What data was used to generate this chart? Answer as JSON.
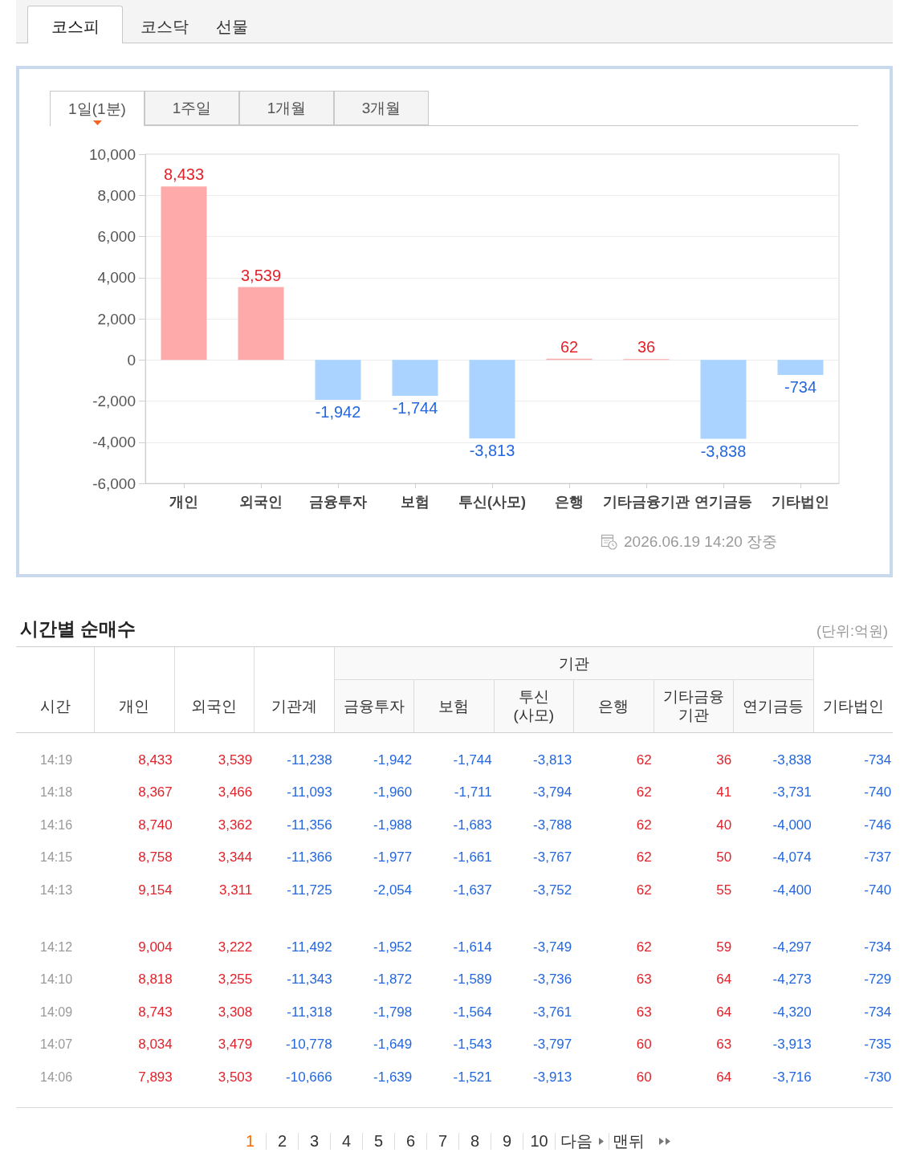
{
  "chart_data": [
    {
      "type": "bar",
      "categories": [
        "개인",
        "외국인",
        "금융투자",
        "보험",
        "투신(사모)",
        "은행",
        "기타금융기관",
        "연기금등",
        "기타법인"
      ],
      "values": [
        8433,
        3539,
        -1942,
        -1744,
        -3813,
        62,
        36,
        -3838,
        -734
      ],
      "value_labels": [
        "8,433",
        "3,539",
        "-1,942",
        "-1,744",
        "-3,813",
        "62",
        "36",
        "-3,838",
        "-734"
      ],
      "colors": [
        "#ffaaaa",
        "#ffaaaa",
        "#aad4ff",
        "#aad4ff",
        "#aad4ff",
        "#ffaaaa",
        "#ffaaaa",
        "#aad4ff",
        "#aad4ff"
      ],
      "ylim": [
        -6000,
        10000
      ],
      "yticks": [
        {
          "value": -6000,
          "label": "-6,000"
        },
        {
          "value": -4000,
          "label": "-4,000"
        },
        {
          "value": -2000,
          "label": "-2,000"
        },
        0,
        {
          "value": 2000,
          "label": "2,000"
        },
        {
          "value": 4000,
          "label": "4,000"
        },
        {
          "value": 6000,
          "label": "6,000"
        },
        {
          "value": 8000,
          "label": "8,000"
        },
        {
          "value": 10000,
          "label": "10,000"
        }
      ],
      "grid": "y",
      "annotations": [
        "코스피",
        "코스닥",
        "선물",
        "1일(1분)",
        "1주일",
        "1개월",
        "3개월",
        "2026.06.19 14:20 장중"
      ]
    },
    {
      "type": "heatmap",
      "title": "시간별 순매수",
      "ylabel": "시간",
      "categories": [
        "개인",
        "외국인",
        "기관계",
        "금융투자",
        "보험",
        "투신(사모)",
        "은행",
        "기타금융기관",
        "연기금등",
        "기타법인"
      ],
      "y_categories": [
        "14:19",
        "14:18",
        "14:16",
        "14:15",
        "14:13",
        "14:12",
        "14:10",
        "14:09",
        "14:07",
        "14:06"
      ],
      "cells": [
        [
          8433,
          3539,
          -11238,
          -1942,
          -1744,
          -3813,
          62,
          36,
          -3838,
          -734
        ],
        [
          8367,
          3466,
          -11093,
          -1960,
          -1711,
          -3794,
          62,
          41,
          -3731,
          -740
        ],
        [
          8740,
          3362,
          -11356,
          -1988,
          -1683,
          -3788,
          62,
          40,
          -4000,
          -746
        ],
        [
          8758,
          3344,
          -11366,
          -1977,
          -1661,
          -3767,
          62,
          50,
          -4074,
          -737
        ],
        [
          9154,
          3311,
          -11725,
          -2054,
          -1637,
          -3752,
          62,
          55,
          -4400,
          -740
        ],
        [
          9004,
          3222,
          -11492,
          -1952,
          -1614,
          -3749,
          62,
          59,
          -4297,
          -734
        ],
        [
          8818,
          3255,
          -11343,
          -1872,
          -1589,
          -3736,
          63,
          64,
          -4273,
          -729
        ],
        [
          8743,
          3308,
          -11318,
          -1798,
          -1564,
          -3761,
          63,
          64,
          -4320,
          -734
        ],
        [
          8034,
          3479,
          -10778,
          -1649,
          -1543,
          -3797,
          60,
          63,
          -3913,
          -735
        ],
        [
          7893,
          3503,
          -10666,
          -1639,
          -1521,
          -3913,
          60,
          64,
          -3716,
          -730
        ]
      ],
      "cell_labels": [
        [
          "8,433",
          "3,539",
          "-11,238",
          "-1,942",
          "-1,744",
          "-3,813",
          "62",
          "36",
          "-3,838",
          "-734"
        ],
        [
          "8,367",
          "3,466",
          "-11,093",
          "-1,960",
          "-1,711",
          "-3,794",
          "62",
          "41",
          "-3,731",
          "-740"
        ],
        [
          "8,740",
          "3,362",
          "-11,356",
          "-1,988",
          "-1,683",
          "-3,788",
          "62",
          "40",
          "-4,000",
          "-746"
        ],
        [
          "8,758",
          "3,344",
          "-11,366",
          "-1,977",
          "-1,661",
          "-3,767",
          "62",
          "50",
          "-4,074",
          "-737"
        ],
        [
          "9,154",
          "3,311",
          "-11,725",
          "-2,054",
          "-1,637",
          "-3,752",
          "62",
          "55",
          "-4,400",
          "-740"
        ],
        [
          "9,004",
          "3,222",
          "-11,492",
          "-1,952",
          "-1,614",
          "-3,749",
          "62",
          "59",
          "-4,297",
          "-734"
        ],
        [
          "8,818",
          "3,255",
          "-11,343",
          "-1,872",
          "-1,589",
          "-3,736",
          "63",
          "64",
          "-4,273",
          "-729"
        ],
        [
          "8,743",
          "3,308",
          "-11,318",
          "-1,798",
          "-1,564",
          "-3,761",
          "63",
          "64",
          "-4,320",
          "-734"
        ],
        [
          "8,034",
          "3,479",
          "-10,778",
          "-1,649",
          "-1,543",
          "-3,797",
          "60",
          "63",
          "-3,913",
          "-735"
        ],
        [
          "7,893",
          "3,503",
          "-10,666",
          "-1,639",
          "-1,521",
          "-3,913",
          "60",
          "64",
          "-3,716",
          "-730"
        ]
      ],
      "annotations": [
        "(단위:억원)",
        "기관",
        "1",
        "2",
        "3",
        "4",
        "5",
        "6",
        "7",
        "8",
        "9",
        "10",
        "다음",
        "맨뒤"
      ]
    }
  ]
}
